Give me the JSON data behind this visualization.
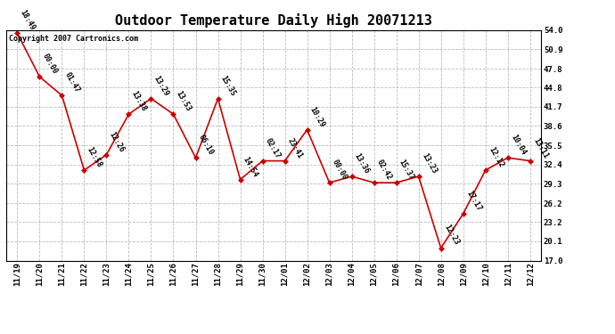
{
  "title": "Outdoor Temperature Daily High 20071213",
  "copyright": "Copyright 2007 Cartronics.com",
  "x_labels": [
    "11/19",
    "11/20",
    "11/21",
    "11/22",
    "11/23",
    "11/24",
    "11/25",
    "11/26",
    "11/27",
    "11/28",
    "11/29",
    "11/30",
    "12/01",
    "12/02",
    "12/03",
    "12/04",
    "12/05",
    "12/06",
    "12/07",
    "12/08",
    "12/09",
    "12/10",
    "12/11",
    "12/12"
  ],
  "y_values": [
    53.5,
    46.5,
    43.5,
    31.5,
    34.0,
    40.5,
    43.0,
    40.5,
    33.5,
    43.0,
    30.0,
    33.0,
    33.0,
    38.0,
    29.5,
    30.5,
    29.5,
    29.5,
    30.5,
    19.0,
    24.5,
    31.5,
    33.5,
    33.0
  ],
  "point_labels": [
    "18:49",
    "00:00",
    "01:47",
    "12:58",
    "12:26",
    "13:38",
    "13:29",
    "13:53",
    "06:10",
    "15:35",
    "14:54",
    "02:17",
    "23:41",
    "10:29",
    "00:00",
    "13:36",
    "02:42",
    "15:37",
    "13:23",
    "12:23",
    "17:17",
    "12:12",
    "10:04",
    "13:11"
  ],
  "y_ticks": [
    17.0,
    20.1,
    23.2,
    26.2,
    29.3,
    32.4,
    35.5,
    38.6,
    41.7,
    44.8,
    47.8,
    50.9,
    54.0
  ],
  "ylim": [
    17.0,
    54.0
  ],
  "line_color": "#cc0000",
  "marker_color": "#cc0000",
  "bg_color": "#ffffff",
  "grid_color": "#bbbbbb",
  "title_fontsize": 11,
  "label_fontsize": 6.5,
  "point_label_fontsize": 6.0,
  "copyright_fontsize": 6.0
}
